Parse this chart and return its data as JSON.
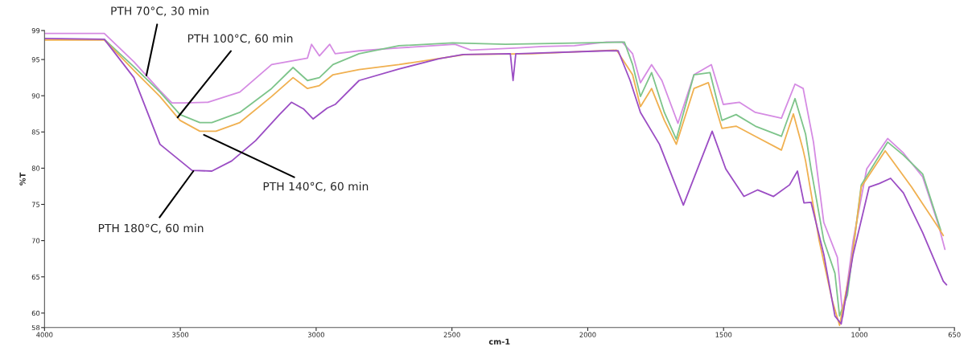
{
  "chart_data": {
    "type": "line",
    "xlabel": "cm-1",
    "ylabel": "%T",
    "xlim": [
      4000,
      650
    ],
    "xticks": [
      4000,
      3500,
      3000,
      2500,
      2000,
      1500,
      1000,
      650
    ],
    "ylim": [
      58,
      99
    ],
    "yticks": [
      58,
      60,
      65,
      70,
      75,
      80,
      85,
      90,
      95,
      99
    ],
    "grid": false,
    "marker": "none",
    "line_style": "solid",
    "series": [
      {
        "color": "#d58be3",
        "x": [
          4000,
          3780,
          3671,
          3575,
          3531,
          3487,
          3399,
          3281,
          3164,
          3032,
          3017,
          2988,
          2950,
          2930,
          2842,
          2695,
          2489,
          2430,
          2255,
          2167,
          2049,
          1932,
          1873,
          1835,
          1806,
          1765,
          1727,
          1668,
          1609,
          1545,
          1501,
          1442,
          1383,
          1287,
          1237,
          1207,
          1169,
          1131,
          1081,
          1061,
          1023,
          973,
          896,
          838,
          767,
          709,
          685
        ],
        "values": [
          98.6,
          98.6,
          94.7,
          90.7,
          89.0,
          89.0,
          89.1,
          90.5,
          94.3,
          95.2,
          97.1,
          95.5,
          97.1,
          95.8,
          96.2,
          96.6,
          97.1,
          96.3,
          96.6,
          96.8,
          96.9,
          97.4,
          97.4,
          95.8,
          91.8,
          94.3,
          92.1,
          86.2,
          92.9,
          94.3,
          88.8,
          89.1,
          87.7,
          86.9,
          91.6,
          91.0,
          83.6,
          72.5,
          67.7,
          59.5,
          70.0,
          79.9,
          84.1,
          82.1,
          78.8,
          72.2,
          68.8
        ]
      },
      {
        "color": "#7dc48a",
        "x": [
          3780,
          3671,
          3575,
          3501,
          3428,
          3384,
          3281,
          3164,
          3085,
          3032,
          2988,
          2938,
          2842,
          2695,
          2498,
          2303,
          2011,
          1865,
          1835,
          1806,
          1765,
          1718,
          1674,
          1609,
          1550,
          1506,
          1454,
          1383,
          1287,
          1237,
          1198,
          1178,
          1131,
          1090,
          1073,
          1044,
          993,
          896,
          838,
          767,
          700
        ],
        "values": [
          97.8,
          94.0,
          90.5,
          87.4,
          86.3,
          86.3,
          87.7,
          91.0,
          93.9,
          92.1,
          92.5,
          94.3,
          95.8,
          96.9,
          97.3,
          97.1,
          97.3,
          97.4,
          94.3,
          89.9,
          93.2,
          87.7,
          84.0,
          92.9,
          93.2,
          86.6,
          87.4,
          85.8,
          84.4,
          89.6,
          84.7,
          79.9,
          70.0,
          65.5,
          59.6,
          62.5,
          77.7,
          83.6,
          81.8,
          79.2,
          71.4
        ]
      },
      {
        "color": "#f0b050",
        "x": [
          4000,
          3780,
          3671,
          3575,
          3501,
          3428,
          3369,
          3281,
          3164,
          3085,
          3032,
          2988,
          2938,
          2842,
          2695,
          2451,
          2205,
          1894,
          1835,
          1806,
          1765,
          1718,
          1674,
          1609,
          1556,
          1506,
          1454,
          1383,
          1287,
          1243,
          1207,
          1198,
          1148,
          1101,
          1073,
          1032,
          993,
          905,
          808,
          709,
          691
        ],
        "values": [
          97.7,
          97.7,
          93.5,
          89.9,
          86.6,
          85.1,
          85.1,
          86.3,
          89.9,
          92.5,
          91.0,
          91.4,
          92.9,
          93.6,
          94.3,
          95.7,
          95.8,
          96.3,
          92.9,
          88.5,
          91.0,
          86.6,
          83.3,
          91.0,
          91.8,
          85.5,
          85.8,
          84.4,
          82.5,
          87.5,
          82.5,
          81.0,
          70.0,
          61.9,
          58.3,
          66.3,
          77.4,
          82.4,
          77.4,
          71.8,
          70.7
        ]
      },
      {
        "color": "#9b4dc4",
        "x": [
          4000,
          3780,
          3671,
          3575,
          3457,
          3384,
          3311,
          3223,
          3135,
          3091,
          3047,
          3011,
          2959,
          2930,
          2842,
          2695,
          2548,
          2460,
          2285,
          2275,
          2265,
          2255,
          1932,
          1888,
          1844,
          1806,
          1736,
          1648,
          1542,
          1492,
          1425,
          1375,
          1316,
          1257,
          1228,
          1204,
          1178,
          1131,
          1090,
          1067,
          1023,
          964,
          926,
          885,
          838,
          767,
          691,
          679
        ],
        "values": [
          97.9,
          97.8,
          92.5,
          83.3,
          79.7,
          79.6,
          81.0,
          83.8,
          87.4,
          89.1,
          88.2,
          86.8,
          88.3,
          88.8,
          92.1,
          93.7,
          95.1,
          95.7,
          95.8,
          92.1,
          95.8,
          95.8,
          96.2,
          96.2,
          92.1,
          87.7,
          83.3,
          74.9,
          85.1,
          79.9,
          76.1,
          77.0,
          76.1,
          77.7,
          79.6,
          75.2,
          75.3,
          68.1,
          59.6,
          58.5,
          68.1,
          77.4,
          77.9,
          78.6,
          76.6,
          71.1,
          64.4,
          63.9
        ]
      }
    ],
    "annotations": [
      {
        "text": "PTH 70°C, 30 min",
        "x": 3625,
        "y": 92.8
      },
      {
        "text": "PTH 100°C, 60 min",
        "x": 3510,
        "y": 87.0
      },
      {
        "text": "PTH 140°C, 60 min",
        "x": 3413,
        "y": 84.6
      },
      {
        "text": "PTH 180°C, 60 min",
        "x": 3452,
        "y": 79.6
      }
    ]
  }
}
